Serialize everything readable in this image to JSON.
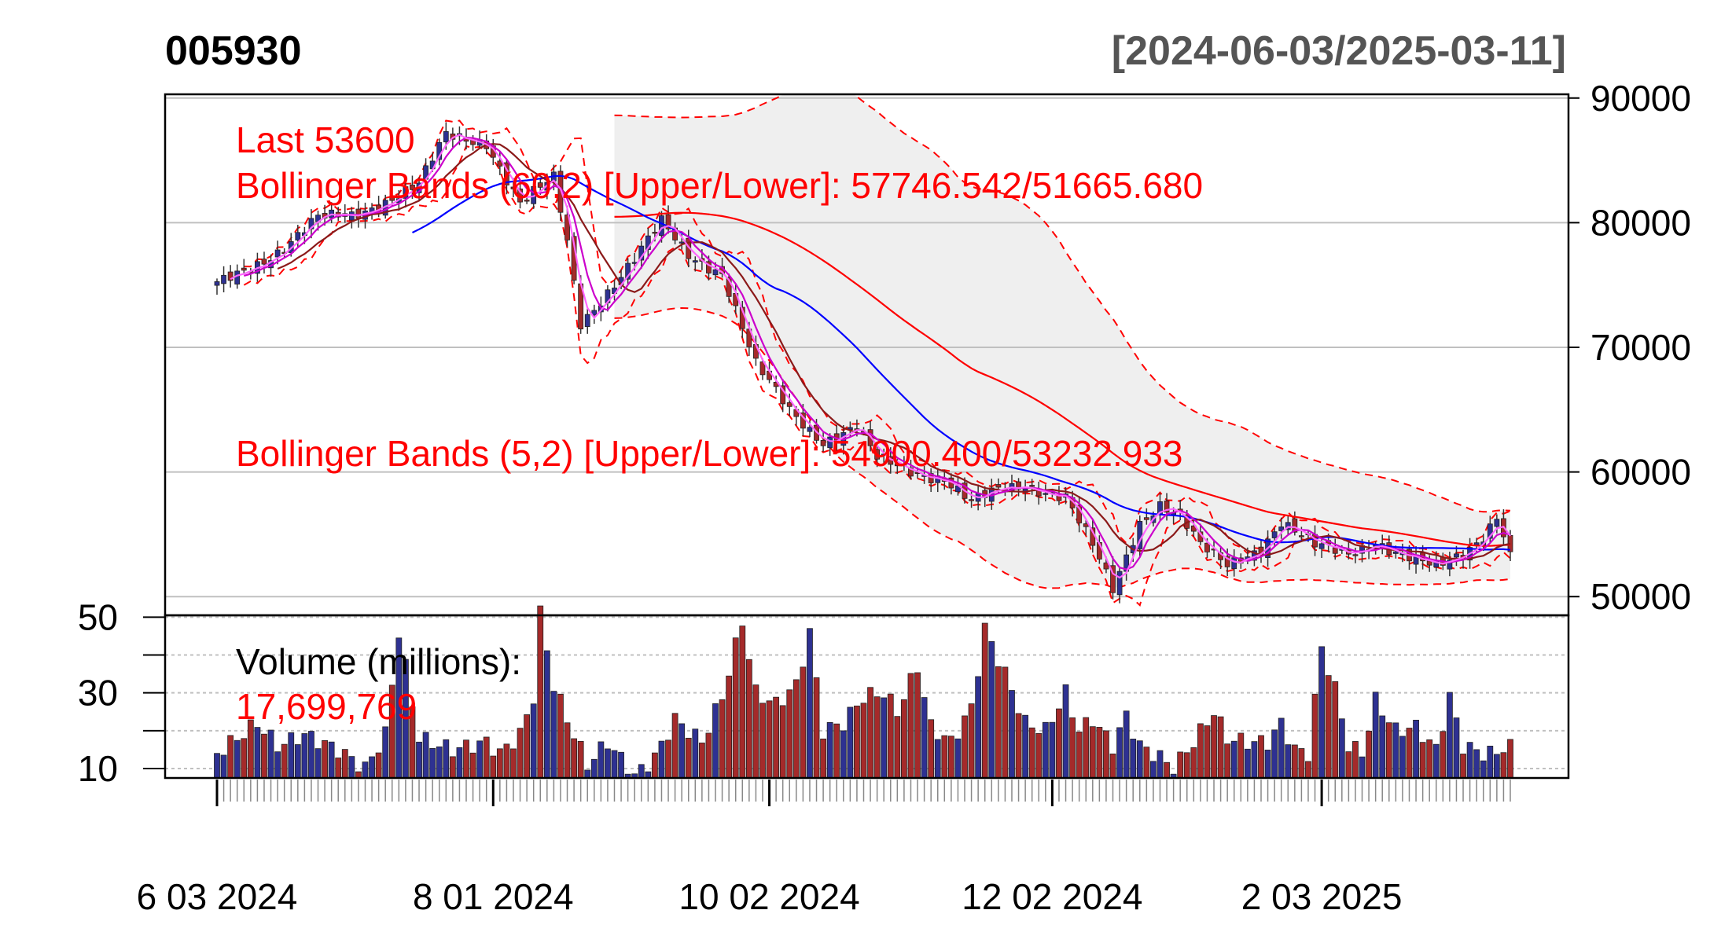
{
  "chart_data": {
    "type": "candlestick",
    "title": "005930",
    "date_range": "[2024-06-03/2025-03-11]",
    "price_axis": {
      "ticks": [
        90000,
        80000,
        70000,
        60000,
        50000
      ],
      "ylim": [
        48500,
        90300
      ]
    },
    "volume_axis": {
      "ticks": [
        50,
        30,
        10
      ],
      "minor_ticks": [
        40,
        20
      ],
      "ylim": [
        7.5,
        50.5
      ]
    },
    "x_axis": {
      "tick_labels": [
        "6 03 2024",
        "8 01 2024",
        "10 02 2024",
        "12 02 2024",
        "2 03 2025"
      ],
      "tick_label_index": [
        0,
        41,
        82,
        124,
        164
      ]
    },
    "n_sessions": 193,
    "annotations": {
      "last": "Last 53600",
      "bb60": "Bollinger Bands (60,2) [Upper/Lower]: 57746.542/51665.680",
      "bb5": "Bollinger Bands (5,2) [Upper/Lower]: 54900.400/53232.933",
      "volume_title": "Volume (millions):",
      "volume_last": "17,699,769"
    },
    "close_anchors": [
      [
        0,
        75000
      ],
      [
        5,
        76500
      ],
      [
        10,
        78000
      ],
      [
        15,
        80300
      ],
      [
        20,
        80600
      ],
      [
        26,
        82000
      ],
      [
        30,
        83000
      ],
      [
        34,
        87000
      ],
      [
        40,
        86500
      ],
      [
        45,
        81500
      ],
      [
        50,
        83500
      ],
      [
        52,
        78500
      ],
      [
        54,
        72000
      ],
      [
        58,
        74500
      ],
      [
        62,
        77000
      ],
      [
        66,
        80000
      ],
      [
        70,
        77500
      ],
      [
        75,
        76000
      ],
      [
        80,
        68500
      ],
      [
        85,
        65000
      ],
      [
        90,
        62500
      ],
      [
        95,
        63500
      ],
      [
        98,
        61000
      ],
      [
        104,
        60000
      ],
      [
        108,
        59500
      ],
      [
        112,
        57500
      ],
      [
        116,
        58500
      ],
      [
        120,
        59000
      ],
      [
        126,
        58000
      ],
      [
        130,
        54000
      ],
      [
        133,
        50500
      ],
      [
        137,
        56000
      ],
      [
        140,
        57500
      ],
      [
        143,
        56500
      ],
      [
        146,
        54000
      ],
      [
        150,
        52500
      ],
      [
        155,
        54000
      ],
      [
        158,
        56000
      ],
      [
        163,
        54000
      ],
      [
        168,
        53500
      ],
      [
        172,
        54500
      ],
      [
        175,
        53500
      ],
      [
        178,
        52800
      ],
      [
        181,
        52300
      ],
      [
        185,
        53500
      ],
      [
        188,
        55000
      ],
      [
        190,
        56500
      ],
      [
        192,
        53600
      ]
    ],
    "volume_anchors": [
      [
        0,
        14
      ],
      [
        6,
        22
      ],
      [
        9,
        16
      ],
      [
        13,
        19
      ],
      [
        18,
        15
      ],
      [
        22,
        10
      ],
      [
        25,
        19
      ],
      [
        27,
        46
      ],
      [
        30,
        18
      ],
      [
        35,
        15
      ],
      [
        40,
        17
      ],
      [
        42,
        14
      ],
      [
        45,
        19
      ],
      [
        47,
        29
      ],
      [
        48,
        51
      ],
      [
        50,
        32
      ],
      [
        52,
        23
      ],
      [
        55,
        11
      ],
      [
        58,
        17
      ],
      [
        62,
        8
      ],
      [
        65,
        13
      ],
      [
        68,
        23
      ],
      [
        72,
        17
      ],
      [
        75,
        29
      ],
      [
        78,
        49
      ],
      [
        80,
        30
      ],
      [
        83,
        27
      ],
      [
        86,
        32
      ],
      [
        88,
        46
      ],
      [
        90,
        20
      ],
      [
        93,
        22
      ],
      [
        96,
        29
      ],
      [
        99,
        30
      ],
      [
        101,
        25
      ],
      [
        104,
        37
      ],
      [
        106,
        21
      ],
      [
        109,
        17
      ],
      [
        112,
        26
      ],
      [
        114,
        47
      ],
      [
        117,
        35
      ],
      [
        120,
        22
      ],
      [
        123,
        20
      ],
      [
        126,
        30
      ],
      [
        128,
        20
      ],
      [
        130,
        23
      ],
      [
        133,
        16
      ],
      [
        135,
        24
      ],
      [
        137,
        16
      ],
      [
        140,
        13
      ],
      [
        142,
        10
      ],
      [
        145,
        17
      ],
      [
        148,
        25
      ],
      [
        150,
        18
      ],
      [
        153,
        17
      ],
      [
        156,
        17
      ],
      [
        158,
        22
      ],
      [
        160,
        15
      ],
      [
        162,
        14
      ],
      [
        164,
        42
      ],
      [
        166,
        31
      ],
      [
        168,
        16
      ],
      [
        170,
        14
      ],
      [
        172,
        28
      ],
      [
        175,
        20
      ],
      [
        178,
        21
      ],
      [
        181,
        15
      ],
      [
        183,
        29
      ],
      [
        185,
        16
      ],
      [
        188,
        14
      ],
      [
        190,
        14
      ],
      [
        192,
        17.7
      ]
    ],
    "indicators": {
      "bb60_upper_last": 57746.542,
      "bb60_lower_last": 51665.68,
      "bb5_upper_last": 54900.4,
      "bb5_lower_last": 53232.933
    },
    "colors": {
      "up": "#2E3192",
      "down": "#A52A2A",
      "text": "#000000",
      "annotation": "#FF0000",
      "frame": "#000000",
      "grid": "#C0C0C0",
      "band_shade": "#EFEFEF",
      "ma_long": "#FF0000",
      "ma_mid": "#0000FF",
      "ma_short": "#8B1A1A",
      "ma_fast": "#CC00CC",
      "ma_fastest": "#FF66FF",
      "range_label": "#555555"
    }
  }
}
